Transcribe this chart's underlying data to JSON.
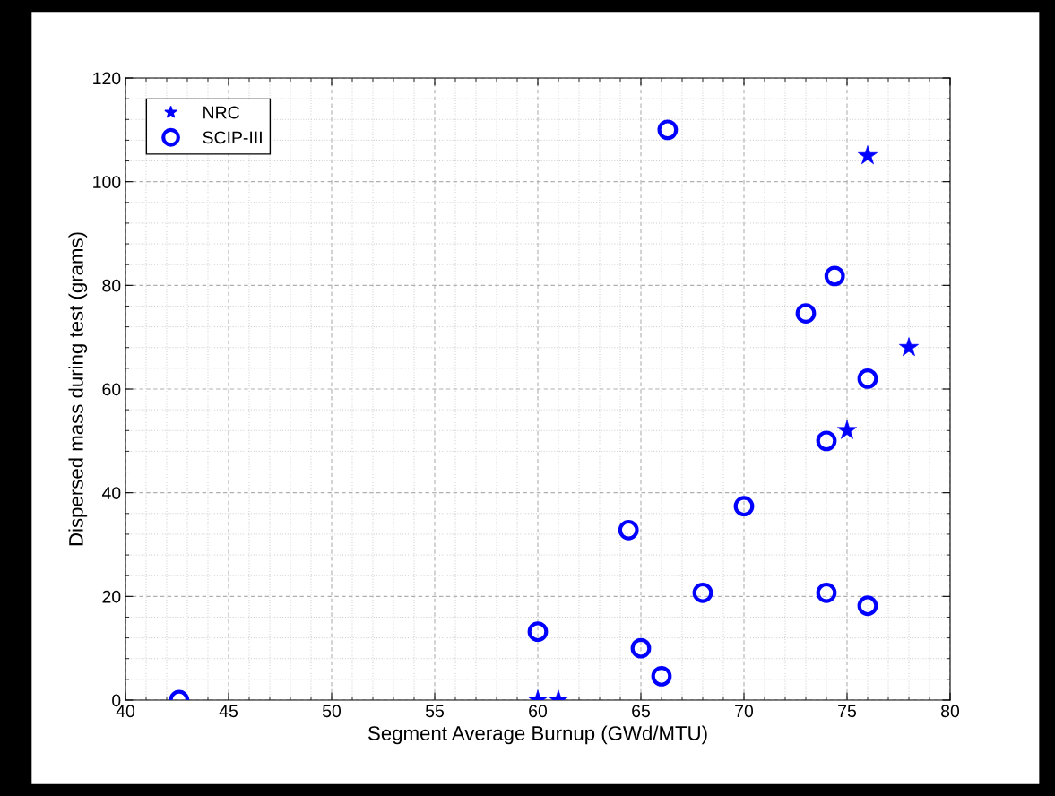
{
  "chart_data": {
    "type": "scatter",
    "xlabel": "Segment Average Burnup (GWd/MTU)",
    "ylabel": "Dispersed mass during test (grams)",
    "xlim": [
      40,
      80
    ],
    "xticks": [
      40,
      45,
      50,
      55,
      60,
      65,
      70,
      75,
      80
    ],
    "ylim": [
      0,
      120
    ],
    "yticks": [
      0,
      20,
      40,
      60,
      80,
      100,
      120
    ],
    "grid": true,
    "legend": "top left",
    "series": [
      {
        "name": "NRC",
        "color": "#0000ff",
        "marker": "star",
        "x": [
          60,
          61,
          76,
          78,
          75
        ],
        "values": [
          0,
          0,
          105,
          68,
          52
        ]
      },
      {
        "name": "SCIP-III",
        "color": "#0000ff",
        "marker": "circle",
        "x": [
          42.6,
          66.3,
          74.4,
          73,
          76,
          74,
          70,
          64.4,
          68,
          74,
          76,
          60,
          65,
          66
        ],
        "values": [
          0,
          110,
          81.8,
          74.6,
          62,
          50,
          37.4,
          32.8,
          20.7,
          20.7,
          18.2,
          13.2,
          10,
          4.6
        ]
      }
    ]
  }
}
